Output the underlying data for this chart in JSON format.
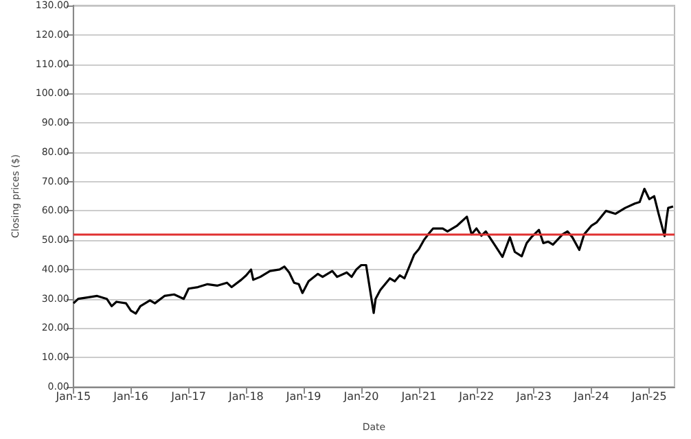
{
  "chart_data": {
    "type": "line",
    "xlabel": "Date",
    "ylabel": "Closing prices ($)",
    "xlim": [
      "2015-01-01",
      "2025-06-10"
    ],
    "xticks": [
      {
        "value": "2015-01-01",
        "label": "Jan-15"
      },
      {
        "value": "2016-01-01",
        "label": "Jan-16"
      },
      {
        "value": "2017-01-01",
        "label": "Jan-17"
      },
      {
        "value": "2018-01-01",
        "label": "Jan-18"
      },
      {
        "value": "2019-01-01",
        "label": "Jan-19"
      },
      {
        "value": "2020-01-01",
        "label": "Jan-20"
      },
      {
        "value": "2021-01-01",
        "label": "Jan-21"
      },
      {
        "value": "2022-01-01",
        "label": "Jan-22"
      },
      {
        "value": "2023-01-01",
        "label": "Jan-23"
      },
      {
        "value": "2024-01-01",
        "label": "Jan-24"
      },
      {
        "value": "2025-01-01",
        "label": "Jan-25"
      }
    ],
    "ylim": [
      0,
      130
    ],
    "yticks": [
      {
        "value": 0,
        "label": "0.00"
      },
      {
        "value": 10,
        "label": "10.00"
      },
      {
        "value": 20,
        "label": "20.00"
      },
      {
        "value": 30,
        "label": "30.00"
      },
      {
        "value": 40,
        "label": "40.00"
      },
      {
        "value": 50,
        "label": "50.00"
      },
      {
        "value": 60,
        "label": "60.00"
      },
      {
        "value": 70,
        "label": "70.00"
      },
      {
        "value": 80,
        "label": "80.00"
      },
      {
        "value": 90,
        "label": "90.00"
      },
      {
        "value": 100,
        "label": "100.00"
      },
      {
        "value": 110,
        "label": "110.00"
      },
      {
        "value": 120,
        "label": "120.00"
      },
      {
        "value": 130,
        "label": "130.00"
      }
    ],
    "grid": "y",
    "marker": "none",
    "line_style": "solid",
    "ref_lines": [
      {
        "axis": "y",
        "value": 52.2,
        "color": "#e03030"
      }
    ],
    "x": [
      "2015-01-02",
      "2015-02-01",
      "2015-04-01",
      "2015-06-01",
      "2015-08-01",
      "2015-09-01",
      "2015-10-01",
      "2015-12-01",
      "2016-01-01",
      "2016-02-01",
      "2016-03-01",
      "2016-05-01",
      "2016-06-01",
      "2016-08-01",
      "2016-10-01",
      "2016-12-01",
      "2017-01-01",
      "2017-03-01",
      "2017-05-01",
      "2017-07-01",
      "2017-09-01",
      "2017-10-01",
      "2017-12-01",
      "2018-01-01",
      "2018-02-01",
      "2018-02-15",
      "2018-04-01",
      "2018-06-01",
      "2018-08-01",
      "2018-09-01",
      "2018-10-01",
      "2018-11-01",
      "2018-12-01",
      "2018-12-24",
      "2019-02-01",
      "2019-04-01",
      "2019-05-01",
      "2019-07-01",
      "2019-08-01",
      "2019-10-01",
      "2019-11-01",
      "2019-12-01",
      "2020-01-01",
      "2020-02-01",
      "2020-03-20",
      "2020-04-01",
      "2020-05-01",
      "2020-07-01",
      "2020-08-01",
      "2020-09-01",
      "2020-10-01",
      "2020-11-01",
      "2020-12-01",
      "2021-01-01",
      "2021-02-01",
      "2021-03-01",
      "2021-04-01",
      "2021-06-01",
      "2021-07-01",
      "2021-09-01",
      "2021-11-01",
      "2021-12-01",
      "2022-01-01",
      "2022-02-01",
      "2022-03-01",
      "2022-05-01",
      "2022-06-15",
      "2022-08-01",
      "2022-09-01",
      "2022-10-15",
      "2022-11-15",
      "2022-12-15",
      "2023-02-01",
      "2023-03-01",
      "2023-04-01",
      "2023-05-01",
      "2023-07-01",
      "2023-08-01",
      "2023-09-01",
      "2023-10-15",
      "2023-11-15",
      "2024-01-01",
      "2024-02-01",
      "2024-04-01",
      "2024-06-01",
      "2024-08-01",
      "2024-10-01",
      "2024-11-01",
      "2024-12-01",
      "2025-01-01",
      "2025-02-01",
      "2025-03-01",
      "2025-04-08",
      "2025-04-20",
      "2025-05-01",
      "2025-06-01"
    ],
    "values": [
      28.5,
      30,
      30.5,
      31,
      30,
      27.5,
      29,
      28.5,
      26,
      25,
      27.5,
      29.5,
      28.5,
      31,
      31.5,
      30,
      33.5,
      34,
      35,
      34.5,
      35.5,
      34,
      36.5,
      38,
      40,
      36.5,
      37.5,
      39.5,
      40,
      41,
      39,
      35.5,
      35,
      32,
      36,
      38.5,
      37.5,
      39.5,
      37.5,
      39,
      37.5,
      40,
      41.5,
      41.5,
      25.2,
      30,
      33,
      37,
      36,
      38,
      37,
      41,
      45,
      47,
      50,
      52,
      54,
      54,
      53,
      55,
      58,
      52,
      54,
      51.5,
      53,
      48,
      44.3,
      51,
      46,
      44.5,
      49,
      51,
      53.5,
      49,
      49.5,
      48.5,
      52,
      53,
      51,
      46.7,
      52,
      55,
      56,
      60,
      59,
      61,
      62.5,
      63,
      67.5,
      64,
      65,
      59,
      51.4,
      57,
      61,
      61.5
    ],
    "color": "#000000"
  }
}
